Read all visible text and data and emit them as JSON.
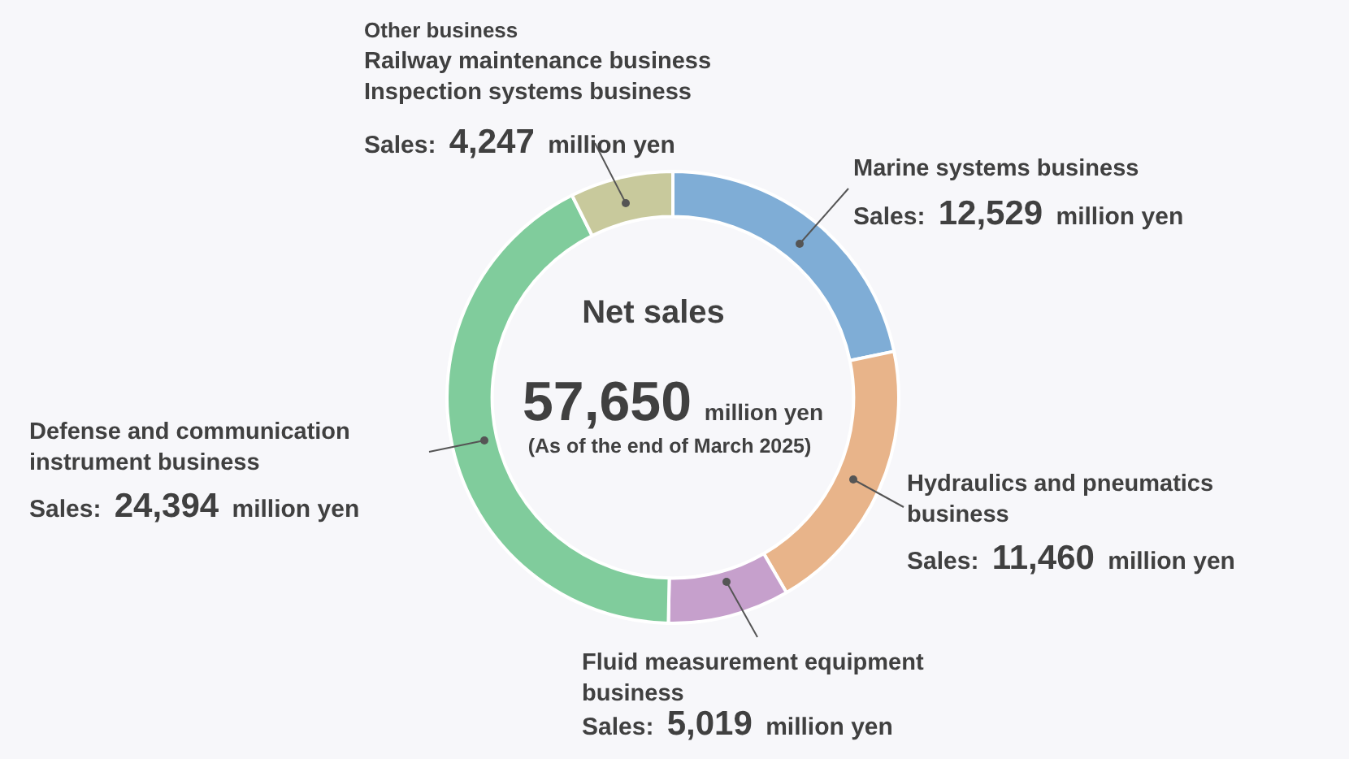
{
  "chart_data": {
    "type": "donut",
    "title": "Net sales",
    "categories": [
      "Marine systems business",
      "Hydraulics and pneumatics\nbusiness",
      "Fluid measurement equipment\nbusiness",
      "Defense and communication\ninstrument business",
      "Other business\nRailway maintenance business\nInspection systems business"
    ],
    "values": [
      12529,
      11460,
      5019,
      24394,
      4247
    ],
    "colors": [
      "#7fadd6",
      "#e8b48a",
      "#c6a0cc",
      "#80cc9c",
      "#c8c99c"
    ],
    "value_labels": [
      "Sales: 12,529 million yen",
      "Sales: 11,460 million yen",
      "Sales: 5,019 million yen",
      "Sales: 24,394 million yen",
      "Sales: 4,247 million yen"
    ],
    "annotations": [
      "57,650 million yen",
      "(As of the end of March 2025)"
    ]
  }
}
